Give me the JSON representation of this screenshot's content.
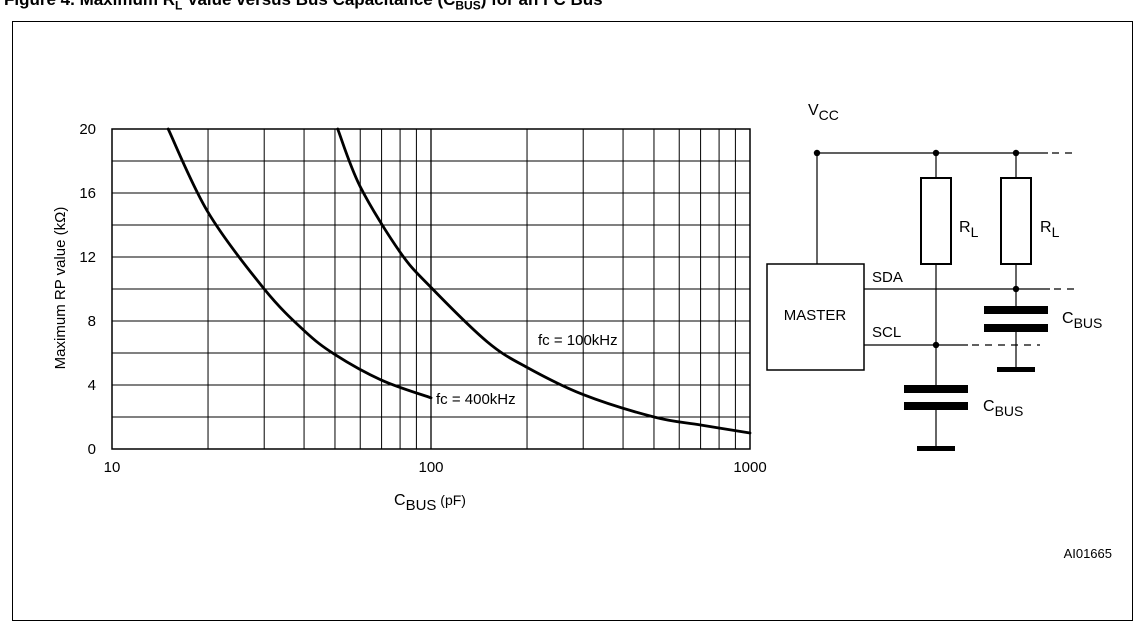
{
  "figure": {
    "title_prefix": "Figure 4. Maximum R",
    "title_sub": "L",
    "title_mid": " Value versus Bus Capacitance (C",
    "title_sub2": "BUS",
    "title_suffix": ") for an I²C Bus",
    "id": "AI01665"
  },
  "chart_data": {
    "type": "line",
    "title": "",
    "xlabel": "C",
    "xlabel_sub": "BUS",
    "xlabel_unit": " (pF)",
    "ylabel": "Maximum RP value (kΩ)",
    "x_scale": "log",
    "xlim": [
      10,
      1000
    ],
    "ylim": [
      0,
      20
    ],
    "x_ticks": [
      "10",
      "100",
      "1000"
    ],
    "y_ticks": [
      "0",
      "4",
      "8",
      "12",
      "16",
      "20"
    ],
    "grid": true,
    "series": [
      {
        "name": "fc = 400kHz",
        "x": [
          15,
          20,
          30,
          40,
          50,
          70,
          100
        ],
        "y": [
          20,
          14.8,
          10,
          7.4,
          5.9,
          4.3,
          3.2
        ]
      },
      {
        "name": "fc = 100kHz",
        "x": [
          51,
          60,
          80,
          100,
          150,
          200,
          300,
          500,
          700,
          1000
        ],
        "y": [
          20,
          16.4,
          12.3,
          10.1,
          6.7,
          5.1,
          3.4,
          2.0,
          1.5,
          1.0
        ]
      }
    ]
  },
  "circuit": {
    "vcc": "V",
    "vcc_sub": "CC",
    "resistor_label": "R",
    "resistor_sub": "L",
    "master_label": "MASTER",
    "sda_label": "SDA",
    "scl_label": "SCL",
    "cap_label": "C",
    "cap_sub": "BUS"
  }
}
